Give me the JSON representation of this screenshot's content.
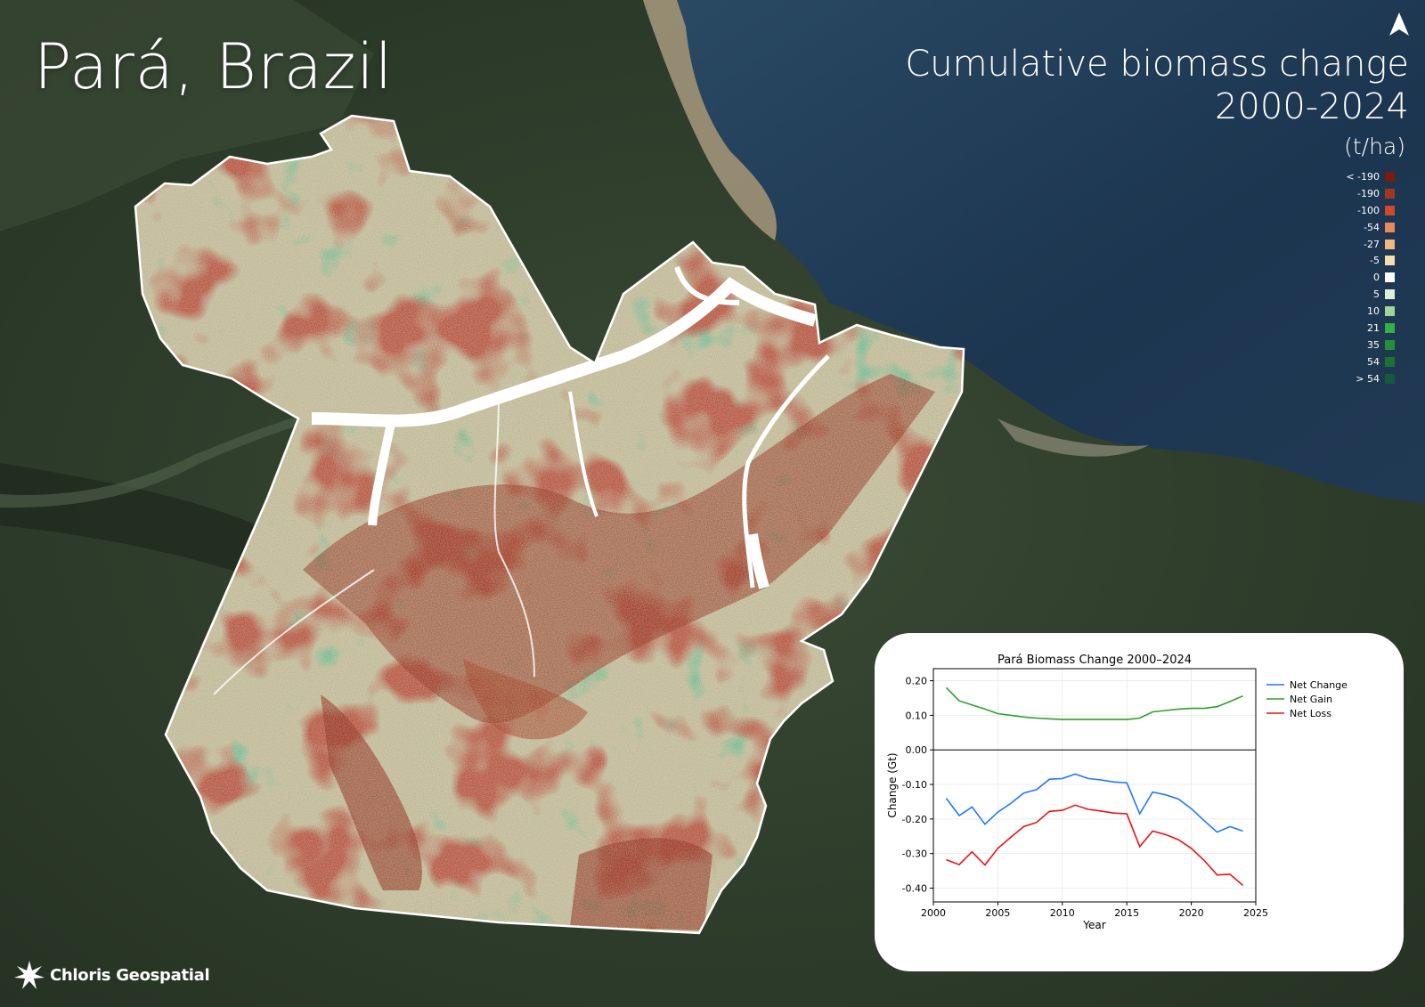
{
  "title": "Pará, Brazil",
  "subtitle_line1": "Cumulative biomass change",
  "subtitle_line2": "2000-2024",
  "legend": {
    "unit": "(t/ha)",
    "items": [
      {
        "label": "< -190",
        "color": "#7b1a10"
      },
      {
        "label": "-190",
        "color": "#a3361f"
      },
      {
        "label": "-100",
        "color": "#d0492a"
      },
      {
        "label": "-54",
        "color": "#e7895a"
      },
      {
        "label": "-27",
        "color": "#f0b77e"
      },
      {
        "label": "-5",
        "color": "#f4ddb0"
      },
      {
        "label": "0",
        "color": "#ffffff"
      },
      {
        "label": "5",
        "color": "#dcefd7"
      },
      {
        "label": "10",
        "color": "#9fd49a"
      },
      {
        "label": "21",
        "color": "#33b04a"
      },
      {
        "label": "35",
        "color": "#22903a"
      },
      {
        "label": "54",
        "color": "#1c7232"
      },
      {
        "label": "> 54",
        "color": "#165a3e"
      }
    ]
  },
  "logo_text": "Chloris Geospatial",
  "icons": [
    "north-arrow-icon",
    "chloris-logo-icon"
  ],
  "chart_data": {
    "type": "line",
    "title": "Pará Biomass Change 2000–2024",
    "xlabel": "Year",
    "ylabel": "Change (Gt)",
    "xlim": [
      2000,
      2025
    ],
    "ylim": [
      -0.44,
      0.235
    ],
    "xticks": [
      "2000",
      "2005",
      "2010",
      "2015",
      "2020",
      "2025"
    ],
    "yticks": [
      "0.20",
      "0.10",
      "0.00",
      "-0.10",
      "-0.20",
      "-0.30",
      "-0.40"
    ],
    "grid": true,
    "legend_position": "outside-right",
    "x": [
      2001,
      2002,
      2003,
      2004,
      2005,
      2006,
      2007,
      2008,
      2009,
      2010,
      2011,
      2012,
      2013,
      2014,
      2015,
      2016,
      2017,
      2018,
      2019,
      2020,
      2021,
      2022,
      2023,
      2024
    ],
    "series": [
      {
        "name": "Net Change",
        "color": "#1f77ff",
        "values": [
          -0.14,
          -0.19,
          -0.165,
          -0.215,
          -0.18,
          -0.155,
          -0.125,
          -0.115,
          -0.085,
          -0.083,
          -0.07,
          -0.083,
          -0.087,
          -0.093,
          -0.095,
          -0.185,
          -0.122,
          -0.13,
          -0.142,
          -0.17,
          -0.205,
          -0.238,
          -0.222,
          -0.235
        ]
      },
      {
        "name": "Net Gain",
        "color": "#2ca02c",
        "values": [
          0.18,
          0.142,
          0.13,
          0.118,
          0.105,
          0.1,
          0.095,
          0.092,
          0.09,
          0.088,
          0.088,
          0.088,
          0.088,
          0.088,
          0.088,
          0.092,
          0.11,
          0.114,
          0.118,
          0.12,
          0.12,
          0.125,
          0.14,
          0.156
        ]
      },
      {
        "name": "Net Loss",
        "color": "#ee1111",
        "values": [
          -0.318,
          -0.332,
          -0.295,
          -0.333,
          -0.285,
          -0.253,
          -0.222,
          -0.21,
          -0.178,
          -0.175,
          -0.16,
          -0.172,
          -0.177,
          -0.183,
          -0.185,
          -0.28,
          -0.235,
          -0.245,
          -0.26,
          -0.285,
          -0.32,
          -0.362,
          -0.36,
          -0.392
        ]
      }
    ]
  }
}
